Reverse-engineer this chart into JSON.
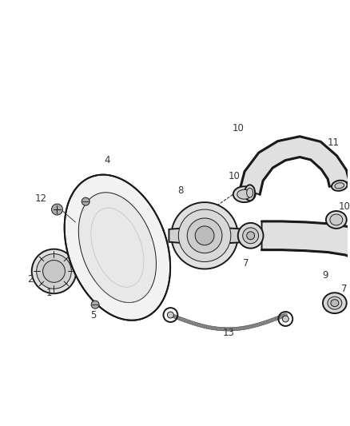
{
  "bg_color": "#ffffff",
  "line_color": "#1a1a1a",
  "label_color": "#333333",
  "fig_width": 4.38,
  "fig_height": 5.33,
  "dpi": 100,
  "lw_main": 1.4,
  "lw_thin": 0.7,
  "lw_thick": 2.2
}
